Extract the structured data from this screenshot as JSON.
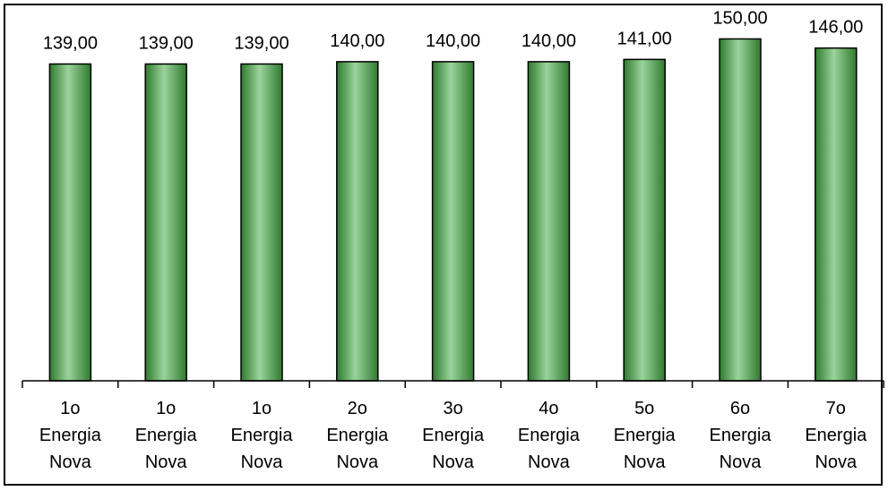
{
  "chart_data": {
    "type": "bar",
    "categories": [
      [
        "1o",
        "Energia",
        "Nova"
      ],
      [
        "1o",
        "Energia",
        "Nova"
      ],
      [
        "1o",
        "Energia",
        "Nova"
      ],
      [
        "2o",
        "Energia",
        "Nova"
      ],
      [
        "3o",
        "Energia",
        "Nova"
      ],
      [
        "4o",
        "Energia",
        "Nova"
      ],
      [
        "5o",
        "Energia",
        "Nova"
      ],
      [
        "6o",
        "Energia",
        "Nova"
      ],
      [
        "7o",
        "Energia",
        "Nova"
      ]
    ],
    "values": [
      139,
      139,
      139,
      140,
      140,
      140,
      141,
      150,
      146
    ],
    "data_labels": [
      "139,00",
      "139,00",
      "139,00",
      "140,00",
      "140,00",
      "140,00",
      "141,00",
      "150,00",
      "146,00"
    ],
    "title": "",
    "xlabel": "",
    "ylabel": "",
    "ylim": [
      0,
      160
    ],
    "grid": false,
    "legend": "none",
    "bar_color": "#5aa45a",
    "bar_edge_color": "#000000"
  }
}
